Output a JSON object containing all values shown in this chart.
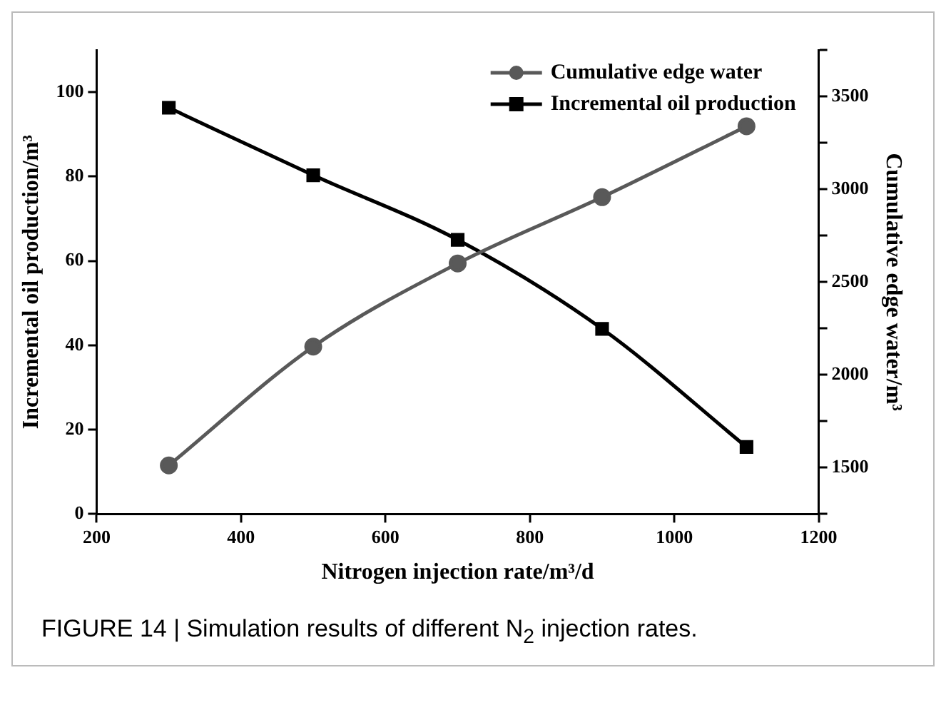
{
  "chart_data": {
    "type": "line",
    "xlabel": "Nitrogen injection rate/m³/d",
    "ylabel": "Incremental oil production/m³",
    "y2label": "Cumulative edge water/m³",
    "x": [
      300,
      500,
      700,
      900,
      1100
    ],
    "series": [
      {
        "name": "Cumulative edge water",
        "color": "#595959",
        "axis": "y2",
        "marker": "circle",
        "values": [
          1512,
          2152,
          2600,
          2957,
          3339
        ]
      },
      {
        "name": "Incremental oil production",
        "color": "#000000",
        "marker": "square",
        "values": [
          96.3,
          80.3,
          65,
          43.9,
          15.9
        ]
      }
    ],
    "xlim": [
      200,
      1200
    ],
    "xticks": [
      200,
      400,
      600,
      800,
      1000,
      1200
    ],
    "ylim": [
      0,
      110
    ],
    "yticks": [
      0,
      20,
      40,
      60,
      80,
      100
    ],
    "y2lim": [
      1250,
      3750
    ],
    "y2ticks": [
      {
        "value": 1250,
        "label": null
      },
      1500,
      {
        "value": 1750,
        "label": null
      },
      2000,
      {
        "value": 2250,
        "label": null
      },
      2500,
      {
        "value": 2750,
        "label": null
      },
      3000,
      {
        "value": 3250,
        "label": null
      },
      3500,
      {
        "value": 3750,
        "label": null
      }
    ],
    "grid": false,
    "legend": "top right",
    "line_style": "solid",
    "annotations": [
      "FIGURE 14 | Simulation results of different N$_{2}$ injection rates."
    ]
  }
}
